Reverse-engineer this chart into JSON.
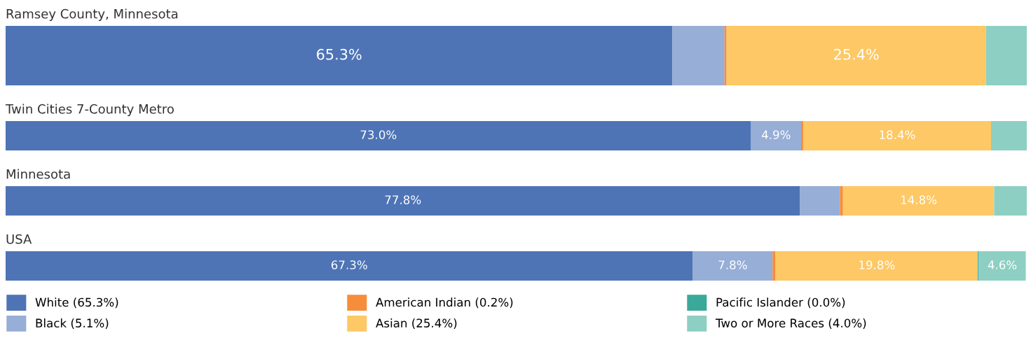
{
  "chart_data": {
    "type": "bar",
    "orientation": "horizontal",
    "stacked": true,
    "categories": [
      "Ramsey County, Minnesota",
      "Twin Cities 7-County Metro",
      "Minnesota",
      "USA"
    ],
    "series": [
      {
        "name": "White (65.3%)",
        "color": "#4e74b6",
        "values": [
          65.3,
          73.0,
          77.8,
          67.3
        ],
        "value_labels": [
          "65.3%",
          "73.0%",
          "77.8%",
          "67.3%"
        ]
      },
      {
        "name": "Black (5.1%)",
        "color": "#97aed6",
        "values": [
          5.1,
          4.9,
          3.9,
          7.8
        ],
        "value_labels": [
          null,
          "4.9%",
          null,
          "7.8%"
        ]
      },
      {
        "name": "American Indian (0.2%)",
        "color": "#f68d3b",
        "values": [
          0.2,
          0.2,
          0.3,
          0.3
        ],
        "value_labels": [
          null,
          null,
          null,
          null
        ]
      },
      {
        "name": "Asian (25.4%)",
        "color": "#fdc865",
        "values": [
          25.4,
          18.4,
          14.8,
          19.8
        ],
        "value_labels": [
          "25.4%",
          "18.4%",
          "14.8%",
          "19.8%"
        ]
      },
      {
        "name": "Pacific Islander (0.0%)",
        "color": "#3aa99a",
        "values": [
          0.0,
          0.0,
          0.0,
          0.1
        ],
        "value_labels": [
          null,
          null,
          null,
          null
        ]
      },
      {
        "name": "Two or More Races (4.0%)",
        "color": "#8ecfc3",
        "values": [
          4.0,
          3.5,
          3.2,
          4.6
        ],
        "value_labels": [
          null,
          null,
          null,
          "4.6%"
        ]
      }
    ],
    "legend": "bottom",
    "tick_labels": false
  }
}
